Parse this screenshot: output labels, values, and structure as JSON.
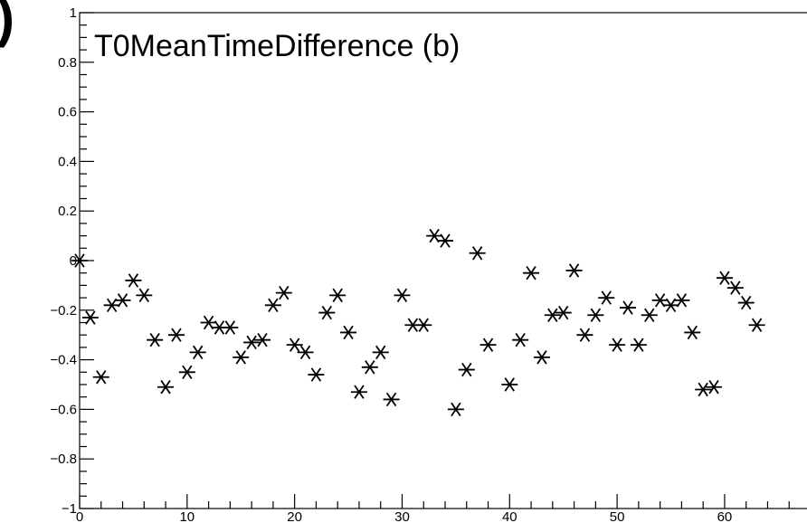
{
  "corner_glyph": ")",
  "chart_data": {
    "type": "scatter",
    "title": "T0MeanTimeDifference (b)",
    "xlabel": "",
    "ylabel": "",
    "xlim": [
      0,
      68
    ],
    "ylim": [
      -1,
      1
    ],
    "x_ticks": [
      0,
      10,
      20,
      30,
      40,
      50,
      60
    ],
    "y_ticks": [
      -1,
      -0.8,
      -0.6,
      -0.4,
      -0.2,
      0,
      0.2,
      0.4,
      0.6,
      0.8,
      1
    ],
    "y_tick_labels": [
      "−1",
      "−0.8",
      "−0.6",
      "−0.4",
      "−0.2",
      "0",
      "0.2",
      "0.4",
      "0.6",
      "0.8",
      "1"
    ],
    "x_tick_labels": [
      "0",
      "10",
      "20",
      "30",
      "40",
      "50",
      "60"
    ],
    "marker": "asterisk",
    "grid": false,
    "series": [
      {
        "points": [
          [
            0,
            0.0
          ],
          [
            1,
            -0.23
          ],
          [
            2,
            -0.47
          ],
          [
            3,
            -0.18
          ],
          [
            4,
            -0.16
          ],
          [
            5,
            -0.08
          ],
          [
            6,
            -0.14
          ],
          [
            7,
            -0.32
          ],
          [
            8,
            -0.51
          ],
          [
            9,
            -0.3
          ],
          [
            10,
            -0.45
          ],
          [
            11,
            -0.37
          ],
          [
            12,
            -0.25
          ],
          [
            13,
            -0.27
          ],
          [
            14,
            -0.27
          ],
          [
            15,
            -0.39
          ],
          [
            16,
            -0.33
          ],
          [
            17,
            -0.32
          ],
          [
            18,
            -0.18
          ],
          [
            19,
            -0.13
          ],
          [
            20,
            -0.34
          ],
          [
            21,
            -0.37
          ],
          [
            22,
            -0.46
          ],
          [
            23,
            -0.21
          ],
          [
            24,
            -0.14
          ],
          [
            25,
            -0.29
          ],
          [
            26,
            -0.53
          ],
          [
            27,
            -0.43
          ],
          [
            28,
            -0.37
          ],
          [
            29,
            -0.56
          ],
          [
            30,
            -0.14
          ],
          [
            31,
            -0.26
          ],
          [
            32,
            -0.26
          ],
          [
            33,
            0.1
          ],
          [
            34,
            0.08
          ],
          [
            35,
            -0.6
          ],
          [
            36,
            -0.44
          ],
          [
            37,
            0.03
          ],
          [
            38,
            -0.34
          ],
          [
            40,
            -0.5
          ],
          [
            41,
            -0.32
          ],
          [
            42,
            -0.05
          ],
          [
            43,
            -0.39
          ],
          [
            44,
            -0.22
          ],
          [
            45,
            -0.21
          ],
          [
            46,
            -0.04
          ],
          [
            47,
            -0.3
          ],
          [
            48,
            -0.22
          ],
          [
            49,
            -0.15
          ],
          [
            50,
            -0.34
          ],
          [
            51,
            -0.19
          ],
          [
            52,
            -0.34
          ],
          [
            53,
            -0.22
          ],
          [
            54,
            -0.16
          ],
          [
            55,
            -0.18
          ],
          [
            56,
            -0.16
          ],
          [
            57,
            -0.29
          ],
          [
            58,
            -0.52
          ],
          [
            59,
            -0.51
          ],
          [
            60,
            -0.07
          ],
          [
            61,
            -0.11
          ],
          [
            62,
            -0.17
          ],
          [
            63,
            -0.26
          ]
        ]
      }
    ]
  }
}
